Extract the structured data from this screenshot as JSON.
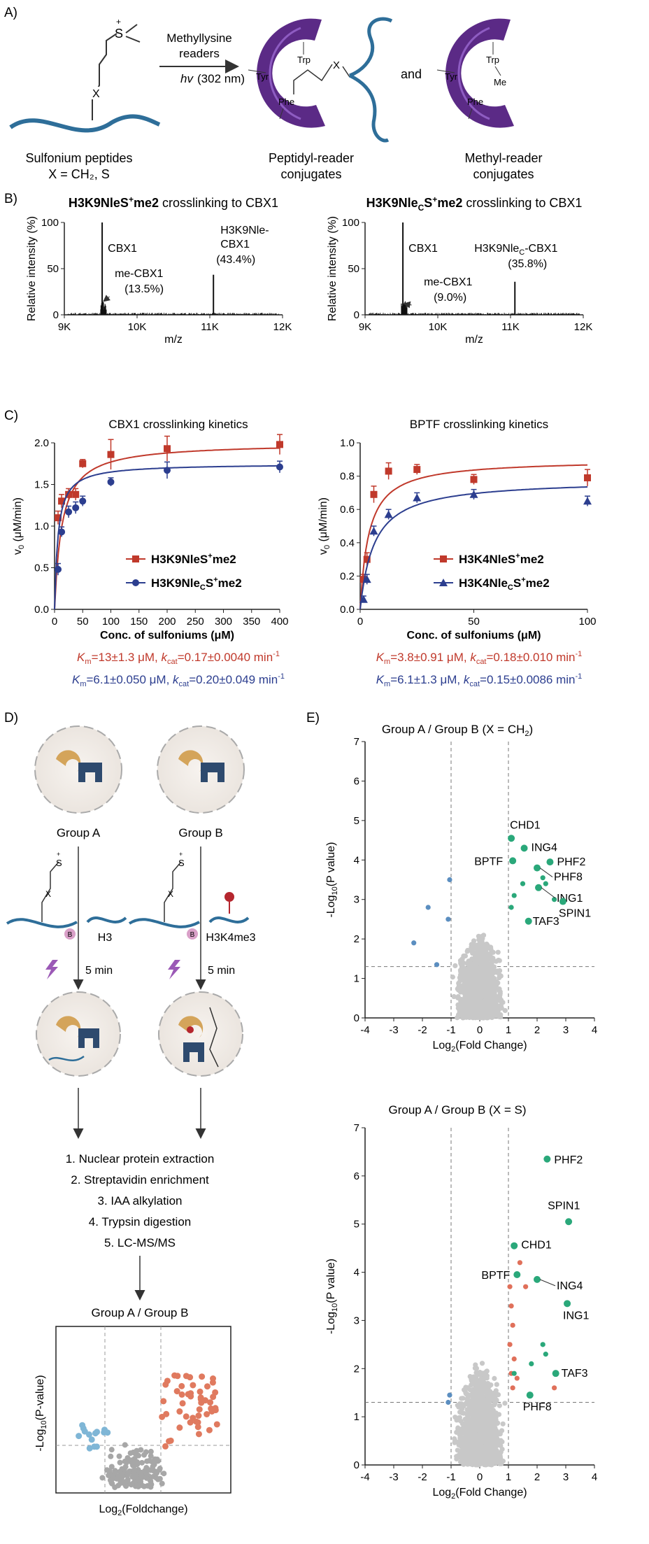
{
  "panelA": {
    "label": "A)",
    "sulfonium_caption_1": "Sulfonium peptides",
    "sulfonium_caption_2": "X = CH₂, S",
    "atom_S": "S",
    "atom_X": "X",
    "plus": "+",
    "arrow_label_1": "Methyllysine",
    "arrow_label_2": "readers",
    "arrow_label_hv": "hv",
    "arrow_label_wavelength": "(302 nm)",
    "and_text": "and",
    "conj1_caption_1": "Peptidyl-reader",
    "conj1_caption_2": "conjugates",
    "conj2_caption_1": "Methyl-reader",
    "conj2_caption_2": "conjugates",
    "res_trp": "Trp",
    "res_tyr": "Tyr",
    "res_phe": "Phe",
    "res_me": "Me",
    "res_x": "X",
    "colors": {
      "purple": "#5b2a86",
      "blue": "#2e6e99"
    }
  },
  "panelB": {
    "label": "B)",
    "left_title_bold": "H3K9NleS",
    "left_title_sup": "+",
    "left_title_bold2": "me2",
    "left_title_rest": " crosslinking to CBX1",
    "right_title_bold": "H3K9Nle",
    "right_title_sub": "C",
    "right_title_bold2": "S",
    "right_title_sup": "+",
    "right_title_bold3": "me2",
    "right_title_rest": " crosslinking to CBX1",
    "ylabel": "Relative intensity (%)",
    "xlabel": "m/z",
    "left_ann_cbx1": "CBX1",
    "left_ann_me": "me-CBX1",
    "left_ann_me_pct": "(13.5%)",
    "left_ann_conj_1": "H3K9Nle-",
    "left_ann_conj_2": "CBX1",
    "left_ann_conj_pct": "(43.4%)",
    "right_ann_cbx1": "CBX1",
    "right_ann_me": "me-CBX1",
    "right_ann_me_pct": "(9.0%)",
    "right_ann_conj_1": "H3K9Nle",
    "right_ann_conj_sub": "C",
    "right_ann_conj_2": "-CBX1",
    "right_ann_conj_pct": "(35.8%)"
  },
  "panelC": {
    "label": "C)",
    "left_title": "CBX1 crosslinking kinetics",
    "right_title": "BPTF crosslinking kinetics",
    "ylabel_main": "v",
    "ylabel_sub": "0",
    "ylabel_unit": " (μM/min)",
    "xlabel": "Conc. of sulfoniums (μM)",
    "left_legend_1": "H3K9NleS",
    "left_legend_1_sup": "+",
    "left_legend_1_end": "me2",
    "left_legend_2": "H3K9Nle",
    "left_legend_2_sub": "C",
    "left_legend_2_mid": "S",
    "left_legend_2_sup": "+",
    "left_legend_2_end": "me2",
    "right_legend_1": "H3K4NleS",
    "right_legend_1_sup": "+",
    "right_legend_1_end": "me2",
    "right_legend_2": "H3K4Nle",
    "right_legend_2_sub": "C",
    "right_legend_2_mid": "S",
    "right_legend_2_sup": "+",
    "right_legend_2_end": "me2",
    "left_km1": "=13±1.3 μM, ",
    "left_kcat1": "=0.17±0.0040 min",
    "left_km2": "=6.1±0.050 μM, ",
    "left_kcat2": "=0.20±0.049 min",
    "right_km1": "=3.8±0.91 μM, ",
    "right_kcat1": "=0.18±0.010 min",
    "right_km2": "=6.1±1.3 μM, ",
    "right_kcat2": "=0.15±0.0086 min",
    "K": "K",
    "m": "m",
    "k": "k",
    "cat": "cat",
    "inv": "-1",
    "colors": {
      "red": "#c0392b",
      "blue": "#2c3e8f"
    }
  },
  "panelD": {
    "label": "D)",
    "groupA": "Group A",
    "groupB": "Group B",
    "h3": "H3",
    "h3k4me3": "H3K4me3",
    "time": "5 min",
    "step1": "1. Nuclear protein extraction",
    "step2": "2. Streptavidin enrichment",
    "step3": "3. IAA alkylation",
    "step4": "4. Trypsin digestion",
    "step5": "5. LC-MS/MS",
    "inset_title": "Group A / Group B",
    "inset_ylabel": "-Log",
    "inset_ylabel_sub": "10",
    "inset_ylabel_end": "(P-value)",
    "inset_xlabel": "Log",
    "inset_xlabel_sub": "2",
    "inset_xlabel_end": "(Foldchange)",
    "atom_S": "S",
    "atom_X": "X",
    "atom_B": "B",
    "plus": "+"
  },
  "panelE": {
    "label": "E)",
    "ylabel": "-Log",
    "ylabel_sub": "10",
    "ylabel_end": "(P value)",
    "xlabel": "Log",
    "xlabel_sub": "2",
    "xlabel_end": "(Fold Change)",
    "top_title": "Group A / Group B (X = CH",
    "top_title_sub": "2",
    "top_title_end": ")",
    "bottom_title": "Group A / Group B (X = S)",
    "top_labels": [
      "CHD1",
      "ING4",
      "PHF2",
      "BPTF",
      "PHF8",
      "ING1",
      "SPIN1",
      "TAF3"
    ],
    "bottom_labels": [
      "PHF2",
      "SPIN1",
      "CHD1",
      "BPTF",
      "ING4",
      "ING1",
      "TAF3",
      "PHF8"
    ]
  },
  "chart_data": [
    {
      "type": "line",
      "id": "B-left",
      "title": "H3K9NleS+me2 crosslinking to CBX1",
      "xlabel": "m/z",
      "ylabel": "Relative intensity (%)",
      "x_ticks": [
        "9K",
        "10K",
        "11K",
        "12K"
      ],
      "y_ticks": [
        0,
        50,
        100
      ],
      "xlim": [
        9000,
        12000
      ],
      "ylim": [
        0,
        100
      ],
      "peaks": [
        {
          "x": 9520,
          "y": 100,
          "label": "CBX1"
        },
        {
          "x": 9534,
          "y": 13.5,
          "label": "me-CBX1 (13.5%)"
        },
        {
          "x": 11050,
          "y": 43.4,
          "label": "H3K9Nle-CBX1 (43.4%)"
        }
      ]
    },
    {
      "type": "line",
      "id": "B-right",
      "title": "H3K9NleCS+me2 crosslinking to CBX1",
      "xlabel": "m/z",
      "ylabel": "Relative intensity (%)",
      "x_ticks": [
        "9K",
        "10K",
        "11K",
        "12K"
      ],
      "y_ticks": [
        0,
        50,
        100
      ],
      "xlim": [
        9000,
        12000
      ],
      "ylim": [
        0,
        100
      ],
      "peaks": [
        {
          "x": 9520,
          "y": 100,
          "label": "CBX1"
        },
        {
          "x": 9534,
          "y": 9.0,
          "label": "me-CBX1 (9.0%)"
        },
        {
          "x": 11060,
          "y": 35.8,
          "label": "H3K9NleC-CBX1 (35.8%)"
        }
      ]
    },
    {
      "type": "scatter",
      "id": "C-left",
      "title": "CBX1 crosslinking kinetics",
      "xlabel": "Conc. of sulfoniums (μM)",
      "ylabel": "v0 (μM/min)",
      "xlim": [
        0,
        400
      ],
      "ylim": [
        0,
        2.0
      ],
      "x_ticks": [
        0,
        50,
        100,
        150,
        200,
        250,
        300,
        350,
        400
      ],
      "y_ticks": [
        0.0,
        0.5,
        1.0,
        1.5,
        2.0
      ],
      "series": [
        {
          "name": "H3K9NleS+me2",
          "color": "#c0392b",
          "x": [
            6.25,
            12.5,
            25,
            37.5,
            50,
            100,
            200,
            400
          ],
          "y": [
            1.1,
            1.3,
            1.38,
            1.38,
            1.75,
            1.86,
            1.93,
            1.98
          ],
          "err": [
            0.08,
            0.08,
            0.07,
            0.07,
            0.05,
            0.18,
            0.15,
            0.12
          ],
          "vmax": 2.0,
          "km": 13
        },
        {
          "name": "H3K9NleCS+me2",
          "color": "#2c3e8f",
          "x": [
            6.25,
            12.5,
            25,
            37.5,
            50,
            100,
            200,
            400
          ],
          "y": [
            0.48,
            0.93,
            1.17,
            1.22,
            1.3,
            1.53,
            1.67,
            1.71
          ],
          "err": [
            0.07,
            0.06,
            0.07,
            0.07,
            0.06,
            0.05,
            0.1,
            0.07
          ],
          "vmax": 1.75,
          "km": 6.1
        }
      ]
    },
    {
      "type": "scatter",
      "id": "C-right",
      "title": "BPTF crosslinking kinetics",
      "xlabel": "Conc. of sulfoniums (μM)",
      "ylabel": "v0 (μM/min)",
      "xlim": [
        0,
        100
      ],
      "ylim": [
        0,
        1.0
      ],
      "x_ticks": [
        0,
        50,
        100
      ],
      "y_ticks": [
        0.0,
        0.2,
        0.4,
        0.6,
        0.8,
        1.0
      ],
      "series": [
        {
          "name": "H3K4NleS+me2",
          "color": "#c0392b",
          "x": [
            1.5,
            3,
            6,
            12.5,
            25,
            50,
            100
          ],
          "y": [
            0.18,
            0.3,
            0.69,
            0.83,
            0.84,
            0.78,
            0.79
          ],
          "err": [
            0.03,
            0.04,
            0.05,
            0.05,
            0.03,
            0.03,
            0.05
          ],
          "vmax": 0.9,
          "km": 3.8
        },
        {
          "name": "H3K4NleCS+me2",
          "color": "#2c3e8f",
          "x": [
            1.5,
            3,
            6,
            12.5,
            25,
            50,
            100
          ],
          "y": [
            0.06,
            0.18,
            0.47,
            0.57,
            0.67,
            0.69,
            0.65
          ],
          "err": [
            0.02,
            0.03,
            0.03,
            0.03,
            0.03,
            0.03,
            0.03
          ],
          "vmax": 0.78,
          "km": 6.1
        }
      ]
    },
    {
      "type": "scatter",
      "id": "E-top",
      "title": "Group A / Group B (X = CH2)",
      "xlabel": "Log2(Fold Change)",
      "ylabel": "-Log10(P value)",
      "xlim": [
        -4,
        4
      ],
      "ylim": [
        0,
        7
      ],
      "x_ticks": [
        -4,
        -3,
        -2,
        -1,
        0,
        1,
        2,
        3,
        4
      ],
      "y_ticks": [
        0,
        1,
        2,
        3,
        4,
        5,
        6,
        7
      ],
      "thresholds": {
        "x": [
          -1,
          1
        ],
        "y": 1.3
      },
      "highlighted": [
        {
          "label": "CHD1",
          "x": 1.1,
          "y": 4.55
        },
        {
          "label": "ING4",
          "x": 1.55,
          "y": 4.3
        },
        {
          "label": "PHF2",
          "x": 2.45,
          "y": 3.95
        },
        {
          "label": "BPTF",
          "x": 1.15,
          "y": 3.98
        },
        {
          "label": "PHF8",
          "x": 2.0,
          "y": 3.8
        },
        {
          "label": "ING1",
          "x": 2.05,
          "y": 3.3
        },
        {
          "label": "SPIN1",
          "x": 2.9,
          "y": 2.95
        },
        {
          "label": "TAF3",
          "x": 1.7,
          "y": 2.45
        }
      ]
    },
    {
      "type": "scatter",
      "id": "E-bottom",
      "title": "Group A / Group B (X = S)",
      "xlabel": "Log2(Fold Change)",
      "ylabel": "-Log10(P value)",
      "xlim": [
        -4,
        4
      ],
      "ylim": [
        0,
        7
      ],
      "x_ticks": [
        -4,
        -3,
        -2,
        -1,
        0,
        1,
        2,
        3,
        4
      ],
      "y_ticks": [
        0,
        1,
        2,
        3,
        4,
        5,
        6,
        7
      ],
      "thresholds": {
        "x": [
          -1,
          1
        ],
        "y": 1.3
      },
      "highlighted": [
        {
          "label": "PHF2",
          "x": 2.35,
          "y": 6.35
        },
        {
          "label": "SPIN1",
          "x": 3.1,
          "y": 5.05
        },
        {
          "label": "CHD1",
          "x": 1.2,
          "y": 4.55
        },
        {
          "label": "BPTF",
          "x": 1.3,
          "y": 3.95
        },
        {
          "label": "ING4",
          "x": 2.0,
          "y": 3.85
        },
        {
          "label": "ING1",
          "x": 3.05,
          "y": 3.35
        },
        {
          "label": "TAF3",
          "x": 2.65,
          "y": 1.9
        },
        {
          "label": "PHF8",
          "x": 1.75,
          "y": 1.45
        }
      ]
    }
  ]
}
